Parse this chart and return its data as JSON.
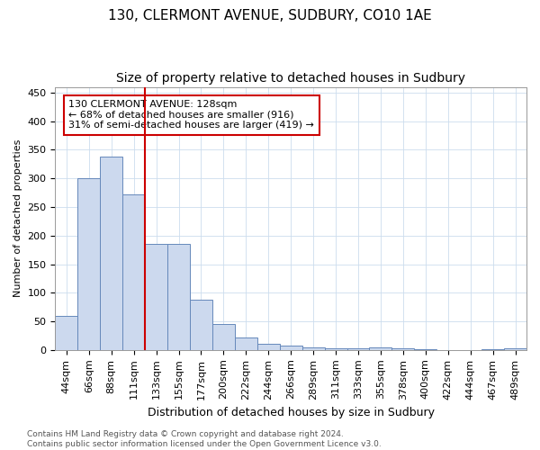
{
  "title": "130, CLERMONT AVENUE, SUDBURY, CO10 1AE",
  "subtitle": "Size of property relative to detached houses in Sudbury",
  "xlabel": "Distribution of detached houses by size in Sudbury",
  "ylabel": "Number of detached properties",
  "bar_labels": [
    "44sqm",
    "66sqm",
    "88sqm",
    "111sqm",
    "133sqm",
    "155sqm",
    "177sqm",
    "200sqm",
    "222sqm",
    "244sqm",
    "266sqm",
    "289sqm",
    "311sqm",
    "333sqm",
    "355sqm",
    "378sqm",
    "400sqm",
    "422sqm",
    "444sqm",
    "467sqm",
    "489sqm"
  ],
  "bar_values": [
    60,
    300,
    338,
    272,
    185,
    185,
    88,
    45,
    21,
    11,
    7,
    4,
    3,
    3,
    4,
    3,
    1,
    0,
    0,
    1,
    3
  ],
  "bar_color": "#ccd9ee",
  "bar_edge_color": "#6688bb",
  "vline_x": 3.5,
  "vline_color": "#cc0000",
  "annotation_text": "130 CLERMONT AVENUE: 128sqm\n← 68% of detached houses are smaller (916)\n31% of semi-detached houses are larger (419) →",
  "annotation_box_color": "#ffffff",
  "annotation_box_edge": "#cc0000",
  "ylim": [
    0,
    460
  ],
  "yticks": [
    0,
    50,
    100,
    150,
    200,
    250,
    300,
    350,
    400,
    450
  ],
  "footnote": "Contains HM Land Registry data © Crown copyright and database right 2024.\nContains public sector information licensed under the Open Government Licence v3.0.",
  "title_fontsize": 11,
  "subtitle_fontsize": 10,
  "xlabel_fontsize": 9,
  "ylabel_fontsize": 8,
  "footnote_fontsize": 6.5,
  "tick_fontsize": 8,
  "annotation_fontsize": 8
}
